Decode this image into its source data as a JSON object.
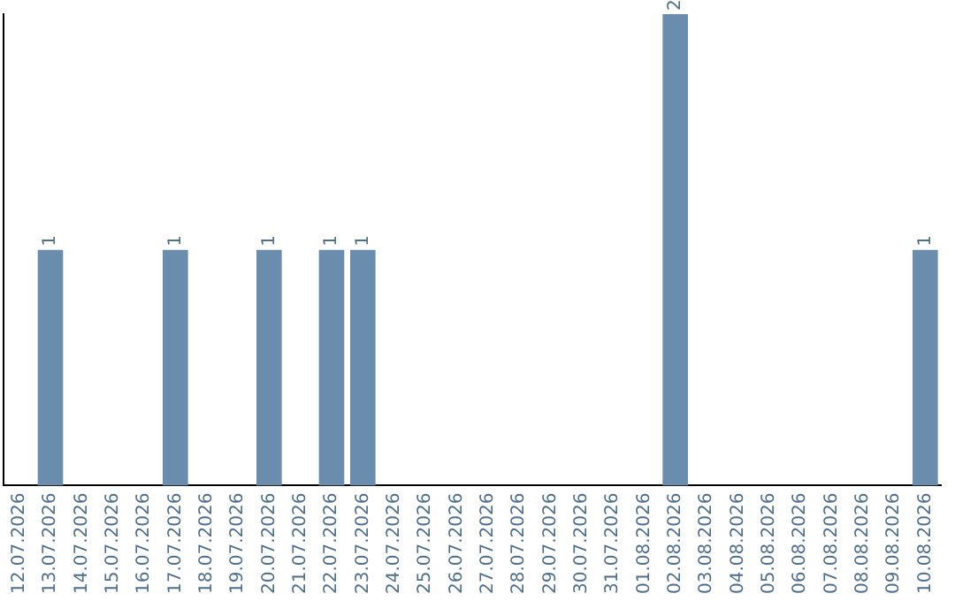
{
  "chart_data": {
    "type": "bar",
    "categories": [
      "12.07.2026",
      "13.07.2026",
      "14.07.2026",
      "15.07.2026",
      "16.07.2026",
      "17.07.2026",
      "18.07.2026",
      "19.07.2026",
      "20.07.2026",
      "21.07.2026",
      "22.07.2026",
      "23.07.2026",
      "24.07.2026",
      "25.07.2026",
      "26.07.2026",
      "27.07.2026",
      "28.07.2026",
      "29.07.2026",
      "30.07.2026",
      "31.07.2026",
      "01.08.2026",
      "02.08.2026",
      "03.08.2026",
      "04.08.2026",
      "05.08.2026",
      "06.08.2026",
      "07.08.2026",
      "08.08.2026",
      "09.08.2026",
      "10.08.2026"
    ],
    "values": [
      0,
      1,
      0,
      0,
      0,
      1,
      0,
      0,
      1,
      0,
      1,
      1,
      0,
      0,
      0,
      0,
      0,
      0,
      0,
      0,
      0,
      2,
      0,
      0,
      0,
      0,
      0,
      0,
      0,
      1
    ],
    "value_labels": [
      null,
      "1",
      null,
      null,
      null,
      "1",
      null,
      null,
      "1",
      null,
      "1",
      "1",
      null,
      null,
      null,
      null,
      null,
      null,
      null,
      null,
      null,
      "2",
      null,
      null,
      null,
      null,
      null,
      null,
      null,
      "1"
    ],
    "color": "#6a8cad",
    "ylim": [
      0,
      2
    ],
    "tick_labels": "x",
    "grid": false,
    "legend": false
  }
}
